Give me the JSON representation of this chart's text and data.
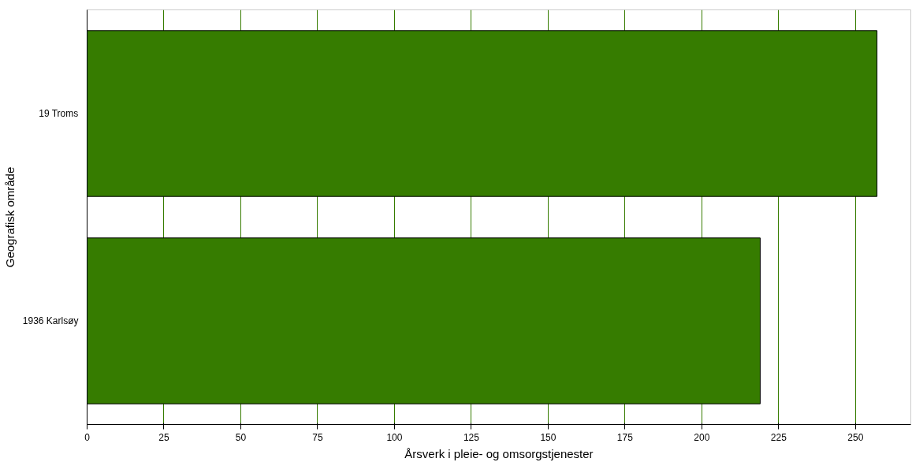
{
  "chart_data": {
    "type": "bar",
    "orientation": "horizontal",
    "xlabel": "Årsverk i pleie- og omsorgstjenester",
    "ylabel": "Geografisk område",
    "categories": [
      "19 Troms",
      "1936 Karlsøy"
    ],
    "values": [
      257,
      219
    ],
    "color": "#367c00",
    "xlim": [
      0,
      268
    ],
    "xticks": [
      0,
      25,
      50,
      75,
      100,
      125,
      150,
      175,
      200,
      225,
      250
    ],
    "grid": "x"
  }
}
